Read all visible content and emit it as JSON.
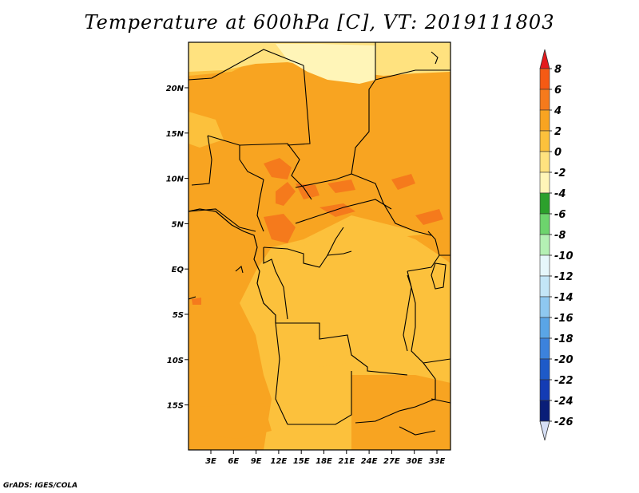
{
  "title": "Temperature at 600hPa [C], VT: 2019111803",
  "credit": "GrADS: IGES/COLA",
  "map": {
    "lon_ticks": [
      "3E",
      "6E",
      "9E",
      "12E",
      "15E",
      "18E",
      "21E",
      "24E",
      "27E",
      "30E",
      "33E"
    ],
    "lat_ticks": [
      "20N",
      "15N",
      "10N",
      "5N",
      "EQ",
      "5S",
      "10S",
      "15S"
    ],
    "fill_colors": {
      "band_0_2": "#fcc13c",
      "band_2_4": "#f8a421",
      "band_4_6": "#f57a1c",
      "band_m2_0": "#ffe27f",
      "band_m4_m2": "#fff5b8"
    }
  },
  "colorbar": {
    "levels": [
      "8",
      "6",
      "4",
      "2",
      "0",
      "-2",
      "-4",
      "-6",
      "-8",
      "-10",
      "-12",
      "-14",
      "-16",
      "-18",
      "-20",
      "-22",
      "-24",
      "-26"
    ],
    "colors": [
      "#e41a1c",
      "#f55a14",
      "#f57a1c",
      "#f8a421",
      "#fcc13c",
      "#ffe27f",
      "#fff5b8",
      "#2ca02c",
      "#6dd46d",
      "#b4f0b4",
      "#e6f7fb",
      "#c3e6f7",
      "#8ec8f0",
      "#5aa5e6",
      "#3c82dc",
      "#1e5ac8",
      "#143cb4",
      "#0a1e78"
    ],
    "top_arrow_color": "#e41a1c",
    "bottom_arrow_color": "#d6dff5"
  }
}
